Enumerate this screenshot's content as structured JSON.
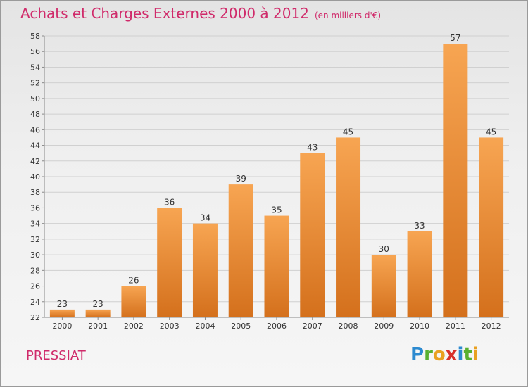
{
  "header": {
    "title": "Achats et Charges Externes 2000 à 2012",
    "unit": "(en milliers d'€)"
  },
  "footer": {
    "city": "PRESSIAT",
    "logo": "Proxiti"
  },
  "colors": {
    "title": "#d02a6a",
    "bar_light": "#f7a552",
    "bar_dark": "#d4701c",
    "grid": "#d0d0d0"
  },
  "chart_data": {
    "type": "bar",
    "categories": [
      "2000",
      "2001",
      "2002",
      "2003",
      "2004",
      "2005",
      "2006",
      "2007",
      "2008",
      "2009",
      "2010",
      "2011",
      "2012"
    ],
    "values": [
      23,
      23,
      26,
      36,
      34,
      39,
      35,
      43,
      45,
      30,
      33,
      57,
      45
    ],
    "ylim": [
      22,
      58
    ],
    "yticks": [
      22,
      24,
      26,
      28,
      30,
      32,
      34,
      36,
      38,
      40,
      42,
      44,
      46,
      48,
      50,
      52,
      54,
      56,
      58
    ],
    "grid": true,
    "xlabel": "",
    "ylabel": ""
  }
}
